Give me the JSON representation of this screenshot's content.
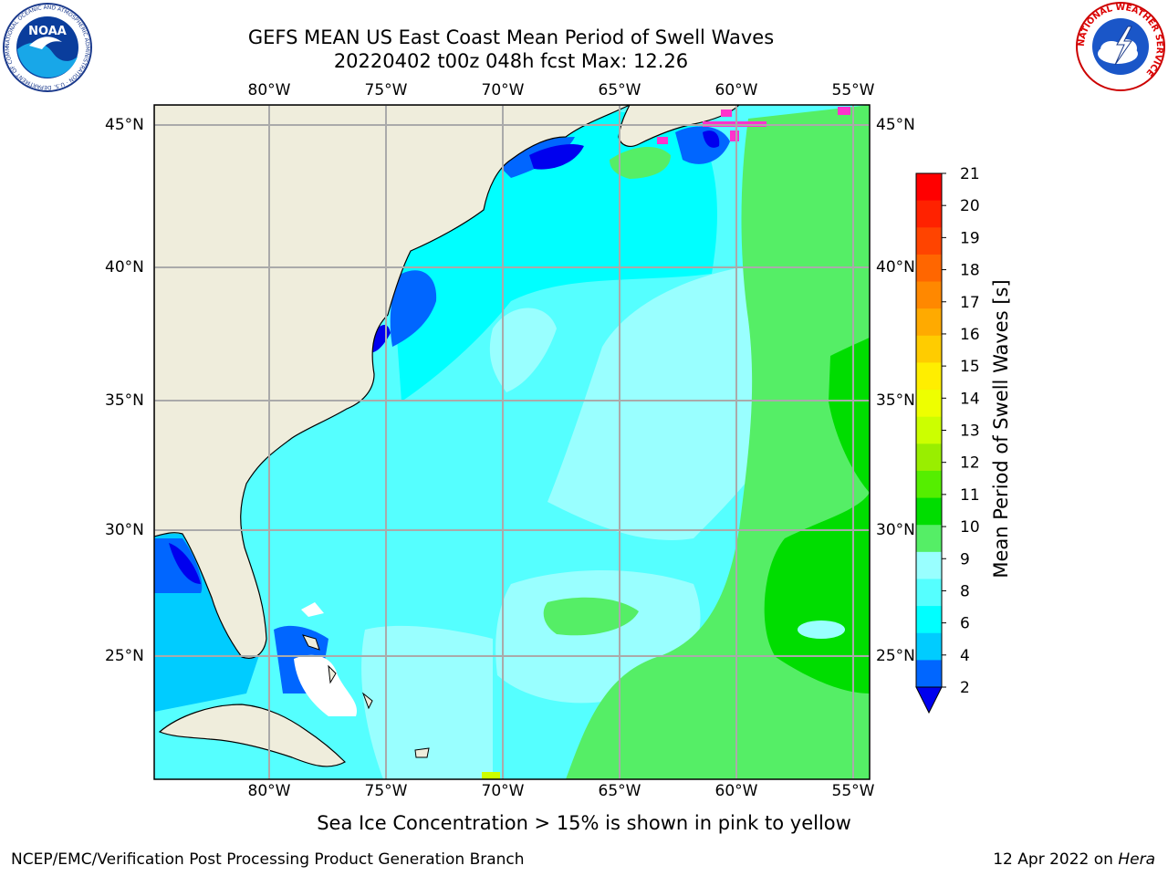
{
  "title_line1": "GEFS MEAN US East Coast Mean Period of Swell Waves",
  "title_line2": "20220402 t00z 048h fcst   Max: 12.26",
  "lon_labels": [
    "80°W",
    "75°W",
    "70°W",
    "65°W",
    "60°W",
    "55°W"
  ],
  "lat_labels": [
    "45°N",
    "40°N",
    "35°N",
    "30°N",
    "25°N"
  ],
  "colorbar": {
    "title": "Mean Period of Swell Waves [s]",
    "tick_labels": [
      "21",
      "20",
      "19",
      "18",
      "17",
      "16",
      "15",
      "14",
      "13",
      "12",
      "11",
      "10",
      "9",
      "8",
      "6",
      "4",
      "2"
    ],
    "colors": [
      "#ff0000",
      "#ff2200",
      "#ff4400",
      "#ff6600",
      "#ff8800",
      "#ffaa00",
      "#ffcc00",
      "#ffee00",
      "#eeff00",
      "#ccff00",
      "#99ee00",
      "#55ee00",
      "#00dd00",
      "#55ee66",
      "#99ffff",
      "#55ffff",
      "#00ffff",
      "#00ccff",
      "#0066ff",
      "#0000ee"
    ]
  },
  "map_colors": {
    "land": "#efeddc",
    "deep_blue": "#0000ee",
    "blue": "#0066ff",
    "cyan_dark": "#00ccff",
    "cyan": "#00ffff",
    "cyan_light": "#55ffff",
    "pale": "#99ffff",
    "green_light": "#55ee66",
    "green": "#00dd00",
    "ice": "#ff33cc"
  },
  "note": "Sea Ice Concentration > 15% is shown in pink to yellow",
  "footer_left": "NCEP/EMC/Verification Post Processing Product Generation Branch",
  "footer_right_prefix": "12 Apr 2022 on ",
  "footer_right_host": "Hera",
  "logos": {
    "noaa_text": "NOAA",
    "noaa_ring": "NATIONAL OCEANIC AND ATMOSPHERIC ADMINISTRATION · U.S. DEPARTMENT OF COMMERCE",
    "nws_ring": "NATIONAL WEATHER SERVICE"
  }
}
